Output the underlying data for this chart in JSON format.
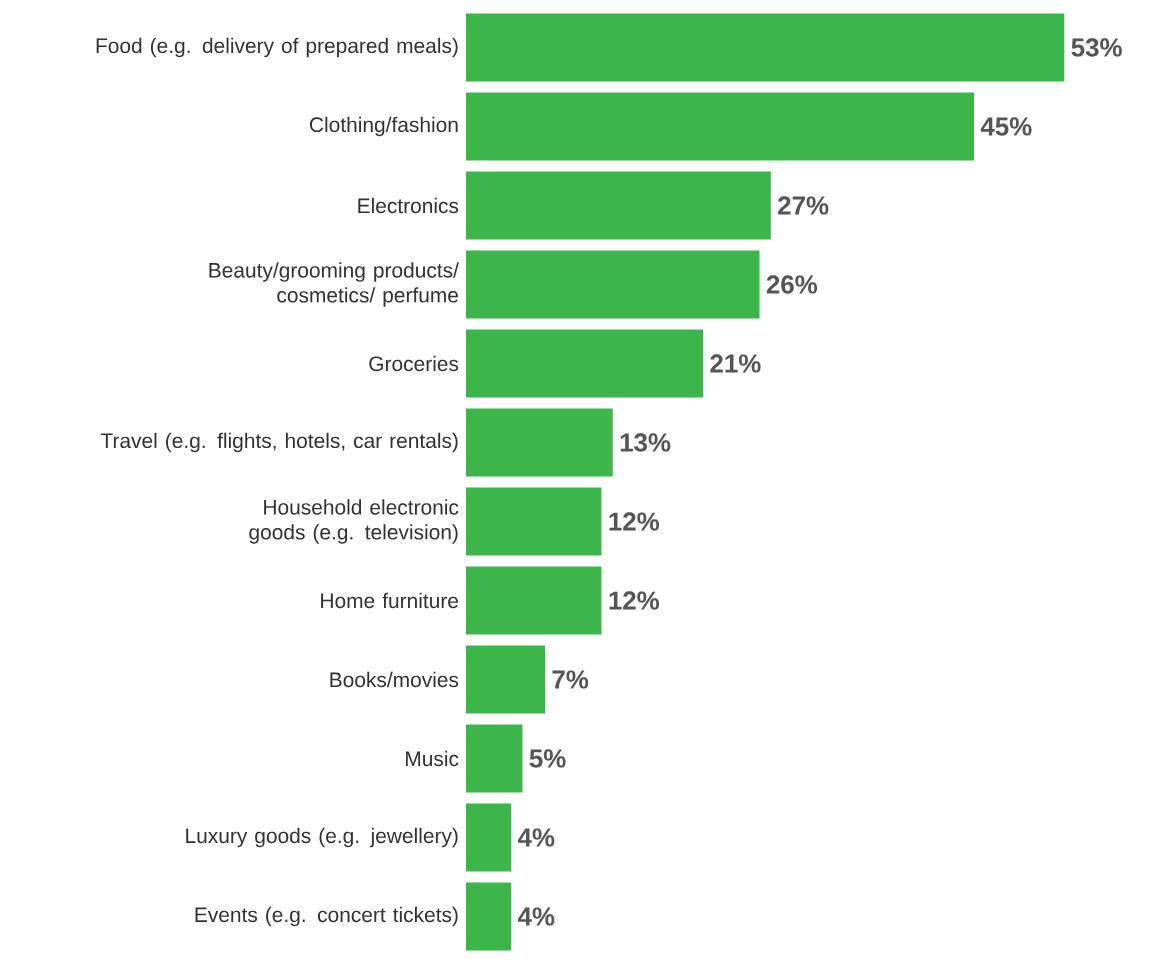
{
  "chart_data": {
    "type": "bar",
    "orientation": "horizontal",
    "categories": [
      "Food (e.g. delivery of prepared meals)",
      "Clothing/fashion",
      "Electronics",
      "Beauty/grooming products/ cosmetics/ perfume",
      "Groceries",
      "Travel (e.g. flights, hotels, car rentals)",
      "Household electronic goods (e.g. television)",
      "Home furniture",
      "Books/movies",
      "Music",
      "Luxury goods (e.g. jewellery)",
      "Events (e.g. concert tickets)"
    ],
    "values": [
      53,
      45,
      27,
      26,
      21,
      13,
      12,
      12,
      7,
      5,
      4,
      4
    ],
    "value_labels": [
      "53%",
      "45%",
      "27%",
      "26%",
      "21%",
      "13%",
      "12%",
      "12%",
      "7%",
      "5%",
      "4%",
      "4%"
    ],
    "color": "#3cb54a",
    "tick_labels": "y"
  }
}
